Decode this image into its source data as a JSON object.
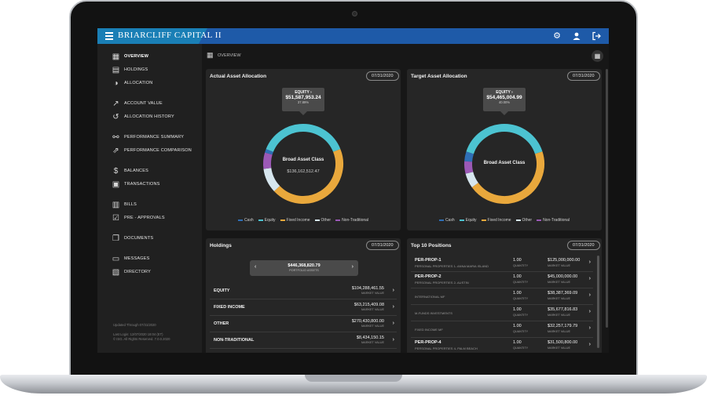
{
  "app": {
    "brand": "BRIARCLIFF CAPITAL II"
  },
  "topbar": {
    "icons": [
      "gear-icon",
      "user-icon",
      "logout-icon"
    ]
  },
  "sidebar": {
    "items": [
      {
        "label": "OVERVIEW",
        "icon": "grid-icon",
        "active": true
      },
      {
        "label": "HOLDINGS",
        "icon": "holdings-icon"
      },
      {
        "label": "ALLOCATION",
        "icon": "pie-icon"
      },
      {
        "label": "ACCOUNT VALUE",
        "icon": "trend-icon"
      },
      {
        "label": "ALLOCATION HISTORY",
        "icon": "history-icon"
      },
      {
        "label": "PERFORMANCE SUMMARY",
        "icon": "performance-icon"
      },
      {
        "label": "PERFORMANCE COMPARISON",
        "icon": "comparison-icon"
      },
      {
        "label": "BALANCES",
        "icon": "dollar-icon"
      },
      {
        "label": "TRANSACTIONS",
        "icon": "transactions-icon"
      },
      {
        "label": "BILLS",
        "icon": "bills-icon"
      },
      {
        "label": "PRE - APPROVALS",
        "icon": "approvals-icon"
      },
      {
        "label": "DOCUMENTS",
        "icon": "documents-icon"
      },
      {
        "label": "MESSAGES",
        "icon": "messages-icon"
      },
      {
        "label": "DIRECTORY",
        "icon": "directory-icon"
      }
    ],
    "updated": "Updated Through 07/31/2020",
    "last_login": "Last Login: 12/07/2020 18:04 (ET)",
    "rights": "© ISG. All Rights Reserved. 7.0.0.2020"
  },
  "page": {
    "breadcrumb": "OVERVIEW"
  },
  "actual_allocation": {
    "title": "Actual Asset Allocation",
    "date": "07/31/2020",
    "callout": {
      "label": "EQUITY ›",
      "value": "$51,587,953.24",
      "percent": "37.89%"
    },
    "center_title": "Broad Asset Class",
    "center_value": "$136,162,512.47"
  },
  "target_allocation": {
    "title": "Target Asset Allocation",
    "date": "07/31/2020",
    "callout": {
      "label": "EQUITY ›",
      "value": "$54,465,004.99",
      "percent": "40.00%"
    },
    "center_title": "Broad Asset Class"
  },
  "legend": [
    {
      "label": "Cash",
      "color": "#2f6fb6"
    },
    {
      "label": "Equity",
      "color": "#4cc3d1"
    },
    {
      "label": "Fixed Income",
      "color": "#e9a83c"
    },
    {
      "label": "Other",
      "color": "#d6e6ee"
    },
    {
      "label": "Non-Traditional",
      "color": "#9b59b6"
    }
  ],
  "chart_data": [
    {
      "type": "pie",
      "title": "Actual Asset Allocation",
      "categories": [
        "Cash",
        "Equity",
        "Fixed Income",
        "Other",
        "Non-Traditional"
      ],
      "values": [
        1.5,
        37.89,
        44.0,
        10.0,
        6.6
      ]
    },
    {
      "type": "pie",
      "title": "Target Asset Allocation",
      "categories": [
        "Cash",
        "Equity",
        "Fixed Income",
        "Other",
        "Non-Traditional"
      ],
      "values": [
        4.0,
        40.0,
        45.0,
        6.0,
        5.0
      ]
    }
  ],
  "holdings": {
    "title": "Holdings",
    "date": "07/31/2020",
    "total": "$446,368,820.79",
    "total_label": "PORTFOLIO ASSETS",
    "rows": [
      {
        "name": "EQUITY",
        "value": "$104,288,461.55",
        "sub": "MARKET VALUE"
      },
      {
        "name": "FIXED INCOME",
        "value": "$63,215,409.08",
        "sub": "MARKET VALUE"
      },
      {
        "name": "OTHER",
        "value": "$270,430,800.00",
        "sub": "MARKET VALUE"
      },
      {
        "name": "NON-TRADITIONAL",
        "value": "$8,434,150.15",
        "sub": "MARKET VALUE"
      }
    ]
  },
  "top_positions": {
    "title": "Top 10 Positions",
    "date": "07/31/2020",
    "qty_label": "QUANTITY",
    "value_label": "MARKET VALUE",
    "rows": [
      {
        "name": "PER-PROP-1",
        "desc": "PERSONAL PROPERTIES 1- ANNA MARIA ISLAND",
        "qty": "1.00",
        "value": "$125,000,000.00"
      },
      {
        "name": "PER-PROP-2",
        "desc": "PERSONAL PROPERTIES 2- AUSTIN",
        "qty": "1.00",
        "value": "$45,000,000.00"
      },
      {
        "name": "",
        "desc": "INTERNATIONAL MF",
        "qty": "1.00",
        "value": "$38,387,369.09"
      },
      {
        "name": "",
        "desc": "M-FUNDS INVESTMENTS",
        "qty": "1.00",
        "value": "$35,677,816.83"
      },
      {
        "name": "",
        "desc": "FIXED INCOME MF",
        "qty": "1.00",
        "value": "$32,257,179.79"
      },
      {
        "name": "PER-PROP-4",
        "desc": "PERSONAL PROPERTIES 4- PALM BEACH",
        "qty": "1.00",
        "value": "$31,500,800.00"
      }
    ]
  }
}
